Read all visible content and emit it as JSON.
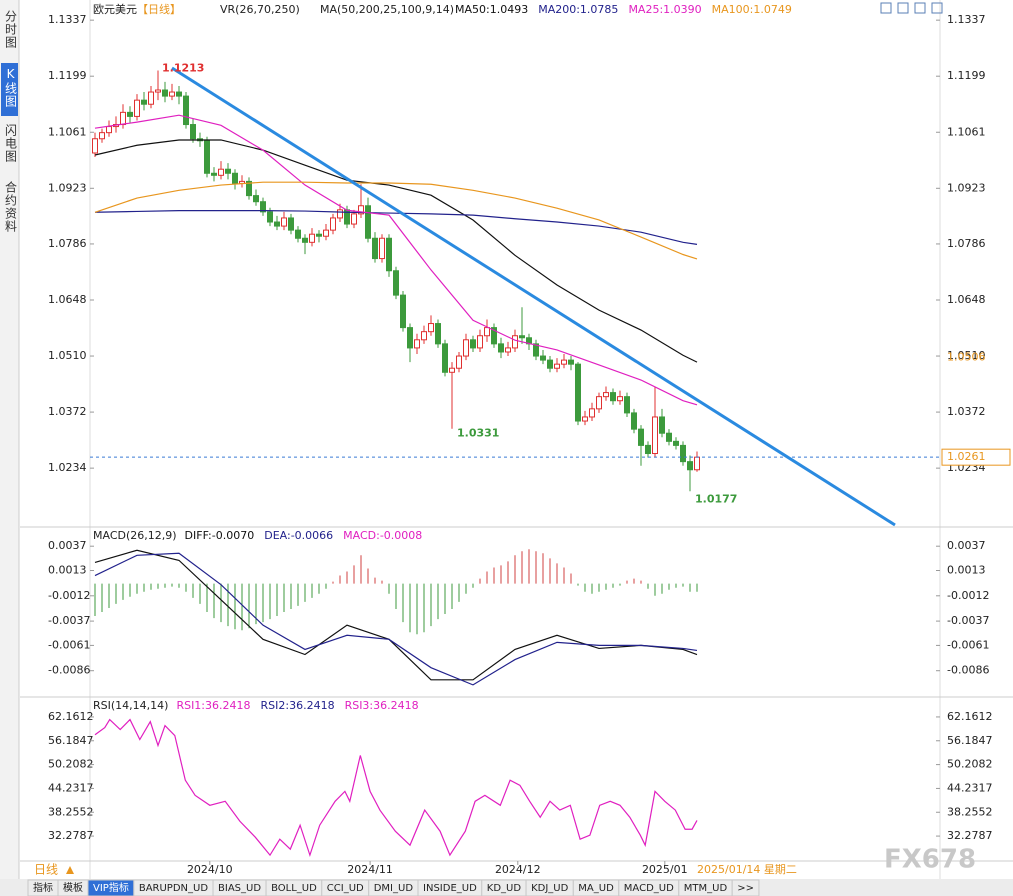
{
  "sidebar": [
    "分时图",
    "K线图",
    "闪电图",
    "合约资料"
  ],
  "footer": {
    "period": "日线",
    "current_date": "2025/01/14 星期二",
    "watermark": "FX678",
    "tabs": [
      "指标",
      "模板",
      "VIP指标",
      "BARUPDN_UD",
      "BIAS_UD",
      "BOLL_UD",
      "CCI_UD",
      "DMI_UD",
      "INSIDE_UD",
      "KD_UD",
      "KDJ_UD",
      "MA_UD",
      "MACD_UD",
      "MTM_UD",
      ">>"
    ]
  },
  "chart_data": [
    {
      "type": "candlestick",
      "title": "欧元美元",
      "period": "【日线】",
      "indicators": [
        "VR(26,70,250)",
        "MA(50,200,25,100,9,14)"
      ],
      "ylim": [
        1.0094,
        1.1362
      ],
      "yticks": [
        1.1337,
        1.1199,
        1.1061,
        1.0923,
        1.0786,
        1.0648,
        {
          "value": 1.051,
          "label": "1.0510"
        },
        1.0372,
        1.0234
      ],
      "up_color": "#e03030",
      "down_color": "#3c9a3c",
      "candles": [
        [
          1.101,
          1.106,
          1.1,
          1.1045
        ],
        [
          1.1045,
          1.107,
          1.1035,
          1.106
        ],
        [
          1.106,
          1.109,
          1.105,
          1.1075
        ],
        [
          1.1075,
          1.11,
          1.106,
          1.108
        ],
        [
          1.108,
          1.113,
          1.107,
          1.111
        ],
        [
          1.111,
          1.1125,
          1.1085,
          1.11
        ],
        [
          1.11,
          1.1155,
          1.109,
          1.114
        ],
        [
          1.114,
          1.116,
          1.1115,
          1.113
        ],
        [
          1.113,
          1.1175,
          1.112,
          1.116
        ],
        [
          1.116,
          1.1213,
          1.114,
          1.1165
        ],
        [
          1.1165,
          1.1185,
          1.1135,
          1.115
        ],
        [
          1.115,
          1.118,
          1.114,
          1.116
        ],
        [
          1.116,
          1.1175,
          1.113,
          1.115
        ],
        [
          1.115,
          1.116,
          1.107,
          1.108
        ],
        [
          1.108,
          1.1095,
          1.1035,
          1.1045
        ],
        [
          1.1045,
          1.106,
          1.1025,
          1.104
        ],
        [
          1.104,
          1.105,
          1.095,
          1.096
        ],
        [
          1.096,
          1.0975,
          1.094,
          1.0955
        ],
        [
          1.0955,
          1.099,
          1.0945,
          1.097
        ],
        [
          1.097,
          1.0985,
          1.0945,
          1.096
        ],
        [
          1.096,
          1.097,
          1.092,
          1.0935
        ],
        [
          1.0935,
          1.0955,
          1.0925,
          1.094
        ],
        [
          1.094,
          1.095,
          1.0895,
          1.0905
        ],
        [
          1.0905,
          1.092,
          1.088,
          1.089
        ],
        [
          1.089,
          1.09,
          1.0855,
          1.0865
        ],
        [
          1.0865,
          1.0875,
          1.083,
          1.084
        ],
        [
          1.084,
          1.0855,
          1.082,
          1.083
        ],
        [
          1.083,
          1.0865,
          1.082,
          1.085
        ],
        [
          1.085,
          1.086,
          1.081,
          1.082
        ],
        [
          1.082,
          1.083,
          1.079,
          1.08
        ],
        [
          1.08,
          1.081,
          1.0761,
          1.079
        ],
        [
          1.079,
          1.0825,
          1.078,
          1.081
        ],
        [
          1.081,
          1.082,
          1.079,
          1.0805
        ],
        [
          1.0805,
          1.0835,
          1.0795,
          1.082
        ],
        [
          1.082,
          1.086,
          1.081,
          1.085
        ],
        [
          1.085,
          1.0885,
          1.084,
          1.087
        ],
        [
          1.087,
          1.088,
          1.0825,
          1.0835
        ],
        [
          1.0835,
          1.087,
          1.0825,
          1.086
        ],
        [
          1.086,
          1.0933,
          1.085,
          1.088
        ],
        [
          1.088,
          1.09,
          1.079,
          1.08
        ],
        [
          1.08,
          1.0815,
          1.074,
          1.075
        ],
        [
          1.075,
          1.081,
          1.074,
          1.08
        ],
        [
          1.08,
          1.081,
          1.0705,
          1.072
        ],
        [
          1.072,
          1.073,
          1.065,
          1.066
        ],
        [
          1.066,
          1.067,
          1.057,
          1.058
        ],
        [
          1.058,
          1.059,
          1.0495,
          1.053
        ],
        [
          1.053,
          1.0565,
          1.0515,
          1.055
        ],
        [
          1.055,
          1.0585,
          1.054,
          1.057
        ],
        [
          1.057,
          1.061,
          1.056,
          1.059
        ],
        [
          1.059,
          1.06,
          1.053,
          1.054
        ],
        [
          1.054,
          1.055,
          1.046,
          1.047
        ],
        [
          1.047,
          1.0495,
          1.0331,
          1.048
        ],
        [
          1.048,
          1.052,
          1.047,
          1.051
        ],
        [
          1.051,
          1.0565,
          1.05,
          1.055
        ],
        [
          1.055,
          1.056,
          1.052,
          1.053
        ],
        [
          1.053,
          1.0575,
          1.052,
          1.056
        ],
        [
          1.056,
          1.06,
          1.0545,
          1.058
        ],
        [
          1.058,
          1.059,
          1.053,
          1.054
        ],
        [
          1.054,
          1.0555,
          1.0505,
          1.052
        ],
        [
          1.052,
          1.0545,
          1.051,
          1.053
        ],
        [
          1.053,
          1.0575,
          1.052,
          1.056
        ],
        [
          1.056,
          1.063,
          1.054,
          1.0555
        ],
        [
          1.0555,
          1.0565,
          1.0525,
          1.054
        ],
        [
          1.054,
          1.055,
          1.05,
          1.051
        ],
        [
          1.051,
          1.0525,
          1.049,
          1.05
        ],
        [
          1.05,
          1.051,
          1.047,
          1.048
        ],
        [
          1.048,
          1.0505,
          1.047,
          1.049
        ],
        [
          1.049,
          1.0515,
          1.048,
          1.05
        ],
        [
          1.05,
          1.051,
          1.0475,
          1.049
        ],
        [
          1.049,
          1.0495,
          1.034,
          1.035
        ],
        [
          1.035,
          1.0375,
          1.034,
          1.036
        ],
        [
          1.036,
          1.0395,
          1.035,
          1.038
        ],
        [
          1.038,
          1.042,
          1.037,
          1.041
        ],
        [
          1.041,
          1.0435,
          1.04,
          1.042
        ],
        [
          1.042,
          1.043,
          1.039,
          1.04
        ],
        [
          1.04,
          1.0425,
          1.039,
          1.041
        ],
        [
          1.041,
          1.042,
          1.036,
          1.037
        ],
        [
          1.037,
          1.038,
          1.032,
          1.033
        ],
        [
          1.033,
          1.034,
          1.024,
          1.029
        ],
        [
          1.029,
          1.03,
          1.026,
          1.027
        ],
        [
          1.027,
          1.0435,
          1.026,
          1.036
        ],
        [
          1.036,
          1.038,
          1.031,
          1.032
        ],
        [
          1.032,
          1.033,
          1.029,
          1.03
        ],
        [
          1.03,
          1.031,
          1.028,
          1.029
        ],
        [
          1.029,
          1.03,
          1.024,
          1.025
        ],
        [
          1.025,
          1.0265,
          1.0177,
          1.023
        ],
        [
          1.023,
          1.0275,
          1.0225,
          1.0261
        ]
      ],
      "x": [
        0,
        6,
        12,
        18,
        24,
        30,
        36,
        42,
        48,
        54,
        60,
        66,
        72,
        78,
        84,
        86
      ],
      "series": [
        {
          "name": "MA50:1.0493",
          "color": "#111111",
          "values": [
            1.1005,
            1.1029,
            1.1042,
            1.1042,
            1.1017,
            1.098,
            1.0943,
            1.0931,
            1.0906,
            1.0845,
            1.0758,
            1.0685,
            1.0623,
            1.0574,
            1.0512,
            1.0495
          ]
        },
        {
          "name": "MA200:1.0785",
          "color": "#22228c",
          "values": [
            1.0864,
            1.0866,
            1.0868,
            1.0868,
            1.0868,
            1.0867,
            1.0864,
            1.0862,
            1.086,
            1.0857,
            1.0848,
            1.084,
            1.083,
            1.0815,
            1.079,
            1.0785
          ]
        },
        {
          "name": "MA25:1.0390",
          "color": "#e020c0",
          "values": [
            1.1071,
            1.1086,
            1.1103,
            1.1078,
            1.1017,
            1.0931,
            1.0869,
            1.0857,
            1.0722,
            1.0598,
            1.0549,
            1.0525,
            1.0488,
            1.0451,
            1.04,
            1.039
          ]
        },
        {
          "name": "MA100:1.0749",
          "color": "#e8961e",
          "values": [
            1.0864,
            1.0899,
            1.0918,
            1.0931,
            1.0938,
            1.0938,
            1.0936,
            1.0936,
            1.0933,
            1.0918,
            1.0899,
            1.0874,
            1.0845,
            1.0803,
            1.076,
            1.0749
          ]
        }
      ],
      "price_marker": 1.0506
    },
    {
      "type": "macd",
      "title": "MACD(26,12,9)",
      "ylim": [
        -0.011,
        0.0053
      ],
      "yticks": [
        0.0037,
        0.0013,
        -0.0012,
        -0.0037,
        -0.0061,
        -0.0086
      ],
      "histogram": {
        "name": "MACD:-0.0008",
        "color": "#e020c0",
        "up_color": "#d04040",
        "down_color": "#3c9a3c",
        "values": [
          -0.0032,
          -0.0028,
          -0.0024,
          -0.002,
          -0.0016,
          -0.0013,
          -0.001,
          -0.0008,
          -0.0006,
          -0.0005,
          -0.0004,
          -0.0003,
          -0.0004,
          -0.0008,
          -0.0014,
          -0.002,
          -0.0028,
          -0.0034,
          -0.0038,
          -0.0042,
          -0.0045,
          -0.0046,
          -0.0044,
          -0.004,
          -0.0038,
          -0.0035,
          -0.0032,
          -0.0028,
          -0.0025,
          -0.0022,
          -0.0018,
          -0.0014,
          -0.001,
          -0.0005,
          0.0002,
          0.0008,
          0.0012,
          0.0018,
          0.0028,
          0.0015,
          0.0006,
          0.0003,
          -0.001,
          -0.0025,
          -0.0038,
          -0.0048,
          -0.005,
          -0.0048,
          -0.0042,
          -0.0035,
          -0.003,
          -0.0025,
          -0.0018,
          -0.001,
          -0.0004,
          0.0005,
          0.0012,
          0.0016,
          0.0018,
          0.0022,
          0.0028,
          0.0032,
          0.0034,
          0.0032,
          0.003,
          0.0025,
          0.002,
          0.0016,
          0.001,
          -0.0002,
          -0.0008,
          -0.001,
          -0.0008,
          -0.0006,
          -0.0004,
          -0.0002,
          0.0003,
          0.0005,
          0.0003,
          -0.0005,
          -0.0012,
          -0.001,
          -0.0006,
          -0.0004,
          -0.0003,
          -0.0008,
          -0.0008
        ]
      },
      "x": [
        0,
        6,
        12,
        18,
        24,
        30,
        36,
        42,
        48,
        54,
        60,
        66,
        72,
        78,
        84,
        86
      ],
      "series": [
        {
          "name": "DIFF:-0.0070",
          "color": "#111111",
          "values": [
            0.0021,
            0.0033,
            0.0023,
            -0.0016,
            -0.0055,
            -0.007,
            -0.0041,
            -0.0055,
            -0.0095,
            -0.0095,
            -0.0065,
            -0.0051,
            -0.0064,
            -0.0061,
            -0.0065,
            -0.007
          ]
        },
        {
          "name": "DEA:-0.0066",
          "color": "#22228c",
          "values": [
            0.0008,
            0.0028,
            0.003,
            -0.0001,
            -0.0041,
            -0.0065,
            -0.0051,
            -0.0055,
            -0.0083,
            -0.01,
            -0.0075,
            -0.0058,
            -0.0061,
            -0.0061,
            -0.0064,
            -0.0066
          ]
        }
      ]
    },
    {
      "type": "line",
      "title": "RSI(14,14,14)",
      "ylim": [
        26.28,
        66.41
      ],
      "yticks": [
        62.1612,
        56.1847,
        50.2082,
        44.2317,
        38.2552,
        32.2787
      ],
      "x": [
        0,
        1.4,
        2.1,
        3.6,
        5,
        6.4,
        7.9,
        9,
        10,
        11.4,
        12.9,
        14.3,
        16.4,
        18.6,
        20.7,
        22.9,
        25,
        26.4,
        27.9,
        29.3,
        30.7,
        32.1,
        34.3,
        35.7,
        36.4,
        37.9,
        39.3,
        40.7,
        42.9,
        45,
        47.1,
        49.3,
        50.7,
        52.9,
        54.3,
        55.7,
        57.9,
        59.3,
        60.7,
        62.1,
        63.6,
        65,
        66.4,
        67.9,
        69.3,
        70.7,
        72.1,
        73.6,
        75,
        76.4,
        77.9,
        78.6,
        80,
        81.4,
        82.9,
        84.3,
        85.3,
        86
      ],
      "series": [
        {
          "name": "RSI1:36.2418",
          "color": "#e020c0",
          "values": [
            57.7,
            59.5,
            61.5,
            59,
            61.5,
            56.5,
            61,
            55,
            60,
            57.5,
            46.3,
            42.5,
            40,
            41,
            36,
            32,
            27.5,
            31.5,
            29,
            35,
            27.5,
            35,
            41,
            43.5,
            41,
            52.5,
            43.5,
            38.8,
            33.5,
            30,
            38.8,
            33.5,
            27.5,
            33.5,
            41,
            42.5,
            40,
            46.3,
            45,
            41,
            37,
            41,
            38.8,
            40,
            31.5,
            32.5,
            40,
            41,
            40,
            37,
            32.5,
            30,
            43.5,
            41,
            38.8,
            34,
            34,
            36.2
          ]
        }
      ],
      "extra_legend": [
        {
          "name": "RSI2:36.2418",
          "color": "#22228c"
        },
        {
          "name": "RSI3:36.2418",
          "color": "#e020c0"
        }
      ],
      "xticks": [
        {
          "value": 16.4,
          "label": "2024/10"
        },
        {
          "value": 39.3,
          "label": "2024/11"
        },
        {
          "value": 60.4,
          "label": "2024/12"
        },
        {
          "value": 81.4,
          "label": "2025/01"
        }
      ]
    }
  ]
}
